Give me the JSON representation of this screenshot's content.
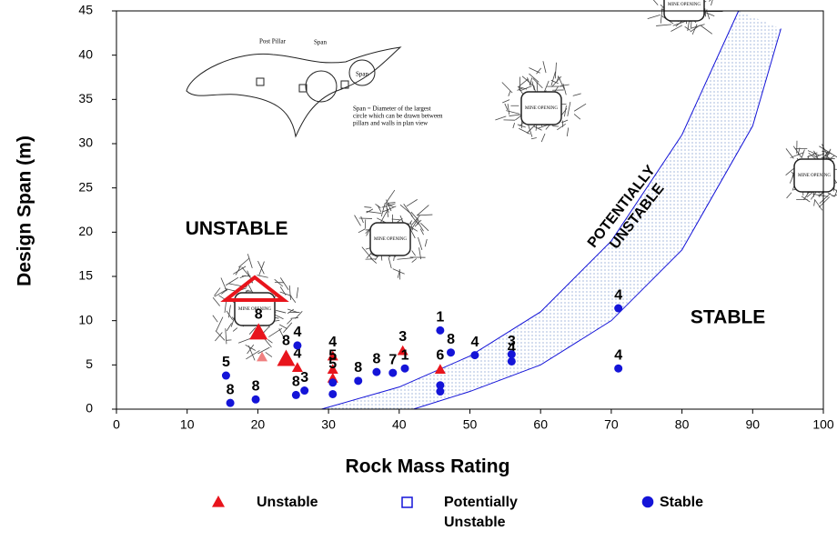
{
  "chart_data": {
    "type": "scatter",
    "x_label": "Rock Mass Rating",
    "y_label": "Design Span (m)",
    "xlim": [
      0,
      100
    ],
    "ylim": [
      0,
      45
    ],
    "xticks": [
      0,
      10,
      20,
      30,
      40,
      50,
      60,
      70,
      80,
      90,
      100
    ],
    "yticks": [
      0,
      5,
      10,
      15,
      20,
      25,
      30,
      35,
      40,
      45
    ],
    "grid": false,
    "series": [
      {
        "name": "Unstable",
        "color": "#e8141c",
        "marker": "triangle",
        "x": [
          20.1,
          24,
          20.6,
          25.6,
          30.6,
          30.6,
          30.6,
          40.5,
          45.8
        ],
        "values": [
          8.7,
          5.7,
          5.9,
          4.7,
          6.0,
          4.5,
          3.5,
          6.6,
          4.5
        ],
        "labels": [
          "8",
          "8",
          null,
          "4",
          "4",
          "5",
          "5",
          "3",
          "6"
        ]
      },
      {
        "name": "Stable",
        "color": "#1414d8",
        "marker": "circle",
        "x": [
          15.5,
          16.1,
          19.7,
          25.4,
          26.6,
          25.6,
          30.6,
          30.6,
          34.2,
          36.8,
          39.1,
          40.8,
          45.8,
          47.3,
          45.8,
          45.8,
          50.7,
          55.9,
          55.9,
          71.0,
          71.0
        ],
        "values": [
          3.8,
          0.7,
          1.1,
          1.6,
          2.1,
          7.2,
          1.7,
          3.0,
          3.2,
          4.2,
          4.1,
          4.6,
          8.9,
          6.4,
          2.0,
          2.7,
          6.1,
          5.4,
          6.2,
          11.4,
          4.6
        ],
        "labels": [
          "5",
          "8",
          "8",
          "8",
          "3",
          "4",
          null,
          null,
          "8",
          "8",
          "7",
          "1",
          "1",
          "8",
          null,
          null,
          "4",
          "4",
          "3",
          "4",
          "4"
        ]
      }
    ],
    "band": {
      "name": "Potentially Unstable",
      "color": "#1414d8",
      "upper": {
        "x": [
          29,
          40,
          50,
          60,
          70,
          80,
          88
        ],
        "y": [
          0,
          2.5,
          6,
          11,
          19,
          31,
          45
        ]
      },
      "lower": {
        "x": [
          42,
          50,
          60,
          70,
          80,
          90,
          94
        ],
        "y": [
          0,
          2,
          5,
          10,
          18,
          32,
          43
        ]
      }
    },
    "annotations": [
      {
        "text": "UNSTABLE",
        "x": 17,
        "y": 20.3
      },
      {
        "text": "STABLE",
        "x": 86.5,
        "y": 10.3
      },
      {
        "text": "POTENTIALLY UNSTABLE",
        "x": 72.5,
        "y": 22.5
      }
    ],
    "figure": {
      "post_pillar": "Post Pillar",
      "span": "Span",
      "mine_opening": "MINE OPENING",
      "note": [
        "Span = Diameter of the largest",
        "circle which can be drawn between",
        "pillars and walls in plan view"
      ]
    }
  }
}
